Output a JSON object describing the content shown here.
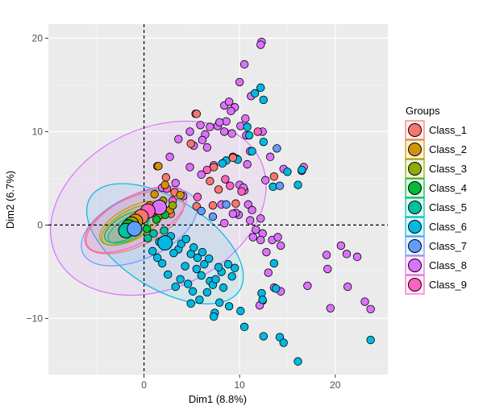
{
  "chart_data": {
    "type": "scatter",
    "xlabel": "Dim1 (8.8%)",
    "ylabel": "Dim2 (6.7%)",
    "xlim": [
      -10,
      25.5
    ],
    "ylim": [
      -16,
      21.5
    ],
    "x_ticks": [
      0,
      10,
      20
    ],
    "y_ticks": [
      -10,
      0,
      10,
      20
    ],
    "grid": true,
    "reference_lines": {
      "x": 0,
      "y": 0,
      "style": "dashed"
    },
    "legend": {
      "title": "Groups",
      "position": "right",
      "entries": [
        {
          "label": "Class_1",
          "color": "#F8766D"
        },
        {
          "label": "Class_2",
          "color": "#D39200"
        },
        {
          "label": "Class_3",
          "color": "#93AA00"
        },
        {
          "label": "Class_4",
          "color": "#00BA38"
        },
        {
          "label": "Class_5",
          "color": "#00C19F"
        },
        {
          "label": "Class_6",
          "color": "#00B9E3"
        },
        {
          "label": "Class_7",
          "color": "#619CFF"
        },
        {
          "label": "Class_8",
          "color": "#DB72FB"
        },
        {
          "label": "Class_9",
          "color": "#FF61C3"
        }
      ]
    },
    "ellipses": [
      {
        "group": "Class_8",
        "cx": 1.5,
        "cy": 1.8,
        "rx": 11.8,
        "ry": 8.6,
        "angle_deg": 25
      },
      {
        "group": "Class_6",
        "cx": 2.2,
        "cy": -2.0,
        "rx": 9.2,
        "ry": 4.8,
        "angle_deg": -32
      },
      {
        "group": "Class_7",
        "cx": -0.5,
        "cy": -0.2,
        "rx": 6.5,
        "ry": 3.4,
        "angle_deg": 25
      },
      {
        "group": "Class_1",
        "cx": -1.0,
        "cy": 0.3,
        "rx": 5.6,
        "ry": 2.6,
        "angle_deg": 25
      },
      {
        "group": "Class_9",
        "cx": -0.8,
        "cy": 0.6,
        "rx": 5.8,
        "ry": 2.5,
        "angle_deg": 28
      },
      {
        "group": "Class_2",
        "cx": -1.2,
        "cy": 0.2,
        "rx": 3.8,
        "ry": 1.7,
        "angle_deg": 28
      },
      {
        "group": "Class_3",
        "cx": -1.4,
        "cy": 0.0,
        "rx": 3.4,
        "ry": 1.5,
        "angle_deg": 30
      },
      {
        "group": "Class_4",
        "cx": -1.8,
        "cy": -0.2,
        "rx": 2.6,
        "ry": 1.2,
        "angle_deg": 30
      },
      {
        "group": "Class_5",
        "cx": -1.6,
        "cy": -0.4,
        "rx": 2.4,
        "ry": 1.1,
        "angle_deg": 30
      }
    ],
    "centroids": [
      {
        "group": "Class_8",
        "x": 1.6,
        "y": 1.9
      },
      {
        "group": "Class_9",
        "x": 0.4,
        "y": 1.5
      },
      {
        "group": "Class_1",
        "x": -0.3,
        "y": 0.9
      },
      {
        "group": "Class_2",
        "x": -0.9,
        "y": 0.4
      },
      {
        "group": "Class_3",
        "x": -1.3,
        "y": 0.1
      },
      {
        "group": "Class_4",
        "x": -1.6,
        "y": -0.2
      },
      {
        "group": "Class_5",
        "x": -1.9,
        "y": -0.6
      },
      {
        "group": "Class_7",
        "x": -1.0,
        "y": -0.4
      },
      {
        "group": "Class_6",
        "x": 2.2,
        "y": -1.9
      }
    ],
    "series": [
      {
        "name": "Class_8",
        "points": [
          [
            12.3,
            19.6
          ],
          [
            12.2,
            19.3
          ],
          [
            10.5,
            17.2
          ],
          [
            10.0,
            15.3
          ],
          [
            8.4,
            12.8
          ],
          [
            8.9,
            13.2
          ],
          [
            9.5,
            12.6
          ],
          [
            9.1,
            12.2
          ],
          [
            10.6,
            11.4
          ],
          [
            11.2,
            13.8
          ],
          [
            10.1,
            10.6
          ],
          [
            8.6,
            11.1
          ],
          [
            7.7,
            10.6
          ],
          [
            7.9,
            11.0
          ],
          [
            6.9,
            10.5
          ],
          [
            5.4,
            11.9
          ],
          [
            5.9,
            10.7
          ],
          [
            6.4,
            9.7
          ],
          [
            8.4,
            10.0
          ],
          [
            9.2,
            9.8
          ],
          [
            10.7,
            9.6
          ],
          [
            12.4,
            10.0
          ],
          [
            11.1,
            7.9
          ],
          [
            9.7,
            7.1
          ],
          [
            9.3,
            7.3
          ],
          [
            10.8,
            6.5
          ],
          [
            12.7,
            4.8
          ],
          [
            13.2,
            7.3
          ],
          [
            14.6,
            6.0
          ],
          [
            16.5,
            5.8
          ],
          [
            16.7,
            6.2
          ],
          [
            10.0,
            4.3
          ],
          [
            10.5,
            3.7
          ],
          [
            10.4,
            4.0
          ],
          [
            10.9,
            2.2
          ],
          [
            11.3,
            1.6
          ],
          [
            12.2,
            0.7
          ],
          [
            9.9,
            1.1
          ],
          [
            9.6,
            1.3
          ],
          [
            9.3,
            1.2
          ],
          [
            8.1,
            2.2
          ],
          [
            8.4,
            0.2
          ],
          [
            11.1,
            0.5
          ],
          [
            11.7,
            -0.5
          ],
          [
            11.4,
            -1.3
          ],
          [
            12.4,
            -0.9
          ],
          [
            12.2,
            -1.6
          ],
          [
            13.4,
            -1.6
          ],
          [
            14.0,
            -1.3
          ],
          [
            14.3,
            -2.2
          ],
          [
            12.8,
            -2.9
          ],
          [
            13.0,
            -5.1
          ],
          [
            13.6,
            -6.7
          ],
          [
            14.3,
            -7.1
          ],
          [
            12.4,
            -8.1
          ],
          [
            12.1,
            -8.6
          ],
          [
            17.1,
            -6.5
          ],
          [
            19.1,
            -3.2
          ],
          [
            19.2,
            -4.7
          ],
          [
            19.5,
            -8.9
          ],
          [
            21.3,
            -6.6
          ],
          [
            21.2,
            -3.1
          ],
          [
            22.3,
            -3.4
          ],
          [
            23.1,
            -8.2
          ],
          [
            23.7,
            -9.0
          ],
          [
            20.6,
            -2.2
          ],
          [
            1.4,
            6.3
          ],
          [
            2.7,
            7.3
          ],
          [
            3.6,
            9.2
          ],
          [
            5.2,
            8.5
          ],
          [
            6.6,
            8.3
          ],
          [
            4.8,
            6.2
          ],
          [
            3.3,
            4.5
          ],
          [
            1.9,
            4.0
          ],
          [
            4.1,
            3.1
          ],
          [
            6.0,
            5.4
          ],
          [
            7.3,
            6.4
          ],
          [
            6.1,
            9.1
          ],
          [
            4.8,
            10.0
          ]
        ]
      },
      {
        "name": "Class_6",
        "points": [
          [
            12.2,
            14.7
          ],
          [
            11.6,
            14.1
          ],
          [
            12.5,
            13.4
          ],
          [
            10.8,
            10.5
          ],
          [
            11.0,
            9.6
          ],
          [
            12.5,
            8.9
          ],
          [
            11.3,
            7.9
          ],
          [
            9.8,
            7.0
          ],
          [
            8.6,
            6.9
          ],
          [
            8.2,
            6.6
          ],
          [
            15.0,
            5.7
          ],
          [
            16.1,
            4.3
          ],
          [
            13.5,
            4.1
          ],
          [
            16.5,
            5.9
          ],
          [
            13.6,
            -4.1
          ],
          [
            13.8,
            -6.8
          ],
          [
            12.3,
            -7.3
          ],
          [
            12.4,
            -8.0
          ],
          [
            10.1,
            -9.2
          ],
          [
            8.9,
            -8.7
          ],
          [
            7.9,
            -8.3
          ],
          [
            7.4,
            -9.4
          ],
          [
            7.3,
            -9.8
          ],
          [
            10.5,
            -10.9
          ],
          [
            12.5,
            -11.9
          ],
          [
            14.2,
            -12.0
          ],
          [
            14.6,
            -12.6
          ],
          [
            16.1,
            -14.6
          ],
          [
            23.7,
            -12.3
          ],
          [
            9.2,
            -5.5
          ],
          [
            9.5,
            -4.6
          ],
          [
            8.8,
            -4.2
          ],
          [
            6.9,
            -6.0
          ],
          [
            6.0,
            -5.4
          ],
          [
            5.5,
            -4.7
          ],
          [
            4.9,
            -3.1
          ],
          [
            4.3,
            -4.4
          ],
          [
            3.6,
            -2.6
          ],
          [
            3.1,
            -3.0
          ],
          [
            2.4,
            -2.0
          ],
          [
            1.9,
            -4.1
          ],
          [
            1.4,
            -3.5
          ],
          [
            0.9,
            -2.8
          ],
          [
            3.8,
            -5.8
          ],
          [
            4.6,
            -6.3
          ],
          [
            5.1,
            -7.1
          ],
          [
            6.6,
            -7.2
          ],
          [
            7.2,
            -6.4
          ],
          [
            8.1,
            -5.0
          ],
          [
            7.8,
            -4.5
          ],
          [
            5.6,
            -3.5
          ],
          [
            6.3,
            -4.2
          ],
          [
            2.8,
            -1.2
          ],
          [
            1.6,
            -1.8
          ],
          [
            3.9,
            -2.0
          ],
          [
            4.4,
            -1.5
          ],
          [
            5.2,
            -2.4
          ],
          [
            6.1,
            -2.9
          ],
          [
            6.8,
            -3.6
          ],
          [
            7.5,
            -5.8
          ],
          [
            8.3,
            -6.7
          ],
          [
            5.8,
            -8.0
          ],
          [
            4.9,
            -8.4
          ],
          [
            3.3,
            -6.6
          ],
          [
            2.5,
            -5.3
          ]
        ]
      },
      {
        "name": "Class_1",
        "points": [
          [
            13.6,
            5.2
          ],
          [
            7.3,
            6.2
          ],
          [
            4.9,
            8.7
          ],
          [
            5.5,
            11.9
          ],
          [
            3.2,
            3.5
          ],
          [
            7.8,
            3.8
          ],
          [
            2.3,
            5.1
          ],
          [
            5.5,
            2.0
          ],
          [
            6.9,
            4.7
          ],
          [
            9.3,
            7.2
          ],
          [
            2.8,
            1.2
          ],
          [
            7.2,
            2.1
          ],
          [
            9.6,
            2.3
          ]
        ]
      },
      {
        "name": "Class_7",
        "points": [
          [
            13.9,
            8.2
          ],
          [
            14.2,
            4.2
          ],
          [
            8.6,
            2.2
          ],
          [
            7.2,
            0.9
          ],
          [
            6.0,
            1.5
          ]
        ]
      },
      {
        "name": "Class_9",
        "points": [
          [
            10.2,
            3.6
          ],
          [
            8.5,
            4.9
          ],
          [
            5.6,
            3.0
          ],
          [
            3.0,
            2.6
          ],
          [
            11.9,
            10.0
          ],
          [
            2.4,
            3.9
          ],
          [
            6.6,
            5.9
          ],
          [
            9.0,
            4.2
          ]
        ]
      },
      {
        "name": "Class_2",
        "points": [
          [
            1.5,
            6.3
          ],
          [
            2.2,
            4.3
          ],
          [
            3.8,
            3.2
          ],
          [
            0.6,
            2.1
          ],
          [
            2.7,
            1.6
          ],
          [
            1.1,
            3.3
          ]
        ]
      },
      {
        "name": "Class_3",
        "points": [
          [
            2.0,
            2.6
          ],
          [
            0.8,
            1.4
          ],
          [
            1.6,
            1.0
          ],
          [
            3.0,
            2.1
          ]
        ]
      },
      {
        "name": "Class_4",
        "points": [
          [
            1.3,
            0.6
          ],
          [
            0.3,
            -0.4
          ],
          [
            2.2,
            1.1
          ]
        ]
      },
      {
        "name": "Class_5",
        "points": [
          [
            1.0,
            -0.9
          ],
          [
            0.4,
            -1.4
          ],
          [
            2.1,
            -0.6
          ]
        ]
      }
    ]
  }
}
